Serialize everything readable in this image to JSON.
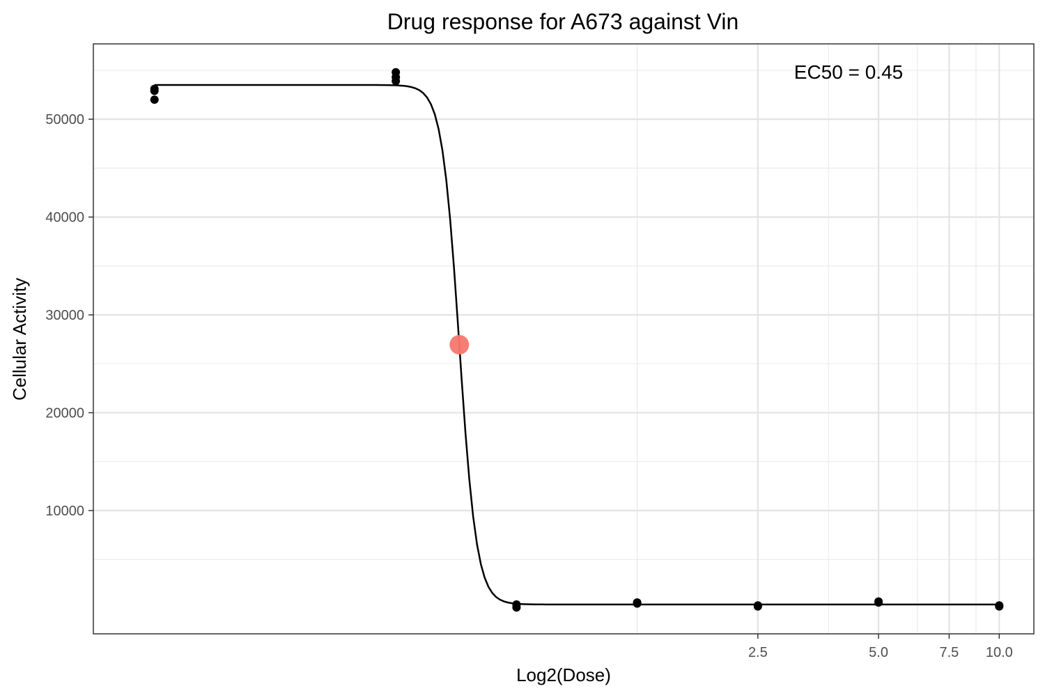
{
  "chart_data": {
    "type": "scatter",
    "title": "Drug response for A673 against Vin",
    "xlabel": "Log2(Dose)",
    "ylabel": "Cellular Activity",
    "x_scale": "log2",
    "x_range": [
      0.055,
      12.2
    ],
    "y_range": [
      -2600,
      57700
    ],
    "x_ticks": [
      {
        "value": 2.5,
        "label": "2.5"
      },
      {
        "value": 5.0,
        "label": "5.0"
      },
      {
        "value": 7.5,
        "label": "7.5"
      },
      {
        "value": 10.0,
        "label": "10.0"
      }
    ],
    "x_minor_gridlines": [
      1.25,
      3.75,
      6.25,
      8.75
    ],
    "y_ticks": [
      {
        "value": 10000,
        "label": "10000"
      },
      {
        "value": 20000,
        "label": "20000"
      },
      {
        "value": 30000,
        "label": "30000"
      },
      {
        "value": 40000,
        "label": "40000"
      },
      {
        "value": 50000,
        "label": "50000"
      }
    ],
    "y_minor_gridlines": [
      5000,
      15000,
      25000,
      35000,
      45000,
      55000
    ],
    "grid": true,
    "points": [
      {
        "x": 0.078125,
        "y": 52900
      },
      {
        "x": 0.078125,
        "y": 53100
      },
      {
        "x": 0.078125,
        "y": 52000
      },
      {
        "x": 0.3125,
        "y": 54800
      },
      {
        "x": 0.3125,
        "y": 54300
      },
      {
        "x": 0.3125,
        "y": 53900
      },
      {
        "x": 0.625,
        "y": 100
      },
      {
        "x": 0.625,
        "y": 400
      },
      {
        "x": 1.25,
        "y": 600
      },
      {
        "x": 1.25,
        "y": 500
      },
      {
        "x": 2.5,
        "y": 200
      },
      {
        "x": 2.5,
        "y": 300
      },
      {
        "x": 5.0,
        "y": 700
      },
      {
        "x": 5.0,
        "y": 600
      },
      {
        "x": 10.0,
        "y": 200
      },
      {
        "x": 10.0,
        "y": 300
      }
    ],
    "fit_curve": {
      "top": 53500,
      "bottom": 400,
      "ec50": 0.45,
      "hill_slope": 20,
      "x_start": 0.078125,
      "x_end": 10.0
    },
    "ec50_point": {
      "x": 0.45,
      "y": 26950,
      "color": "#f8766d"
    },
    "annotation": "EC50 = 0.45"
  }
}
